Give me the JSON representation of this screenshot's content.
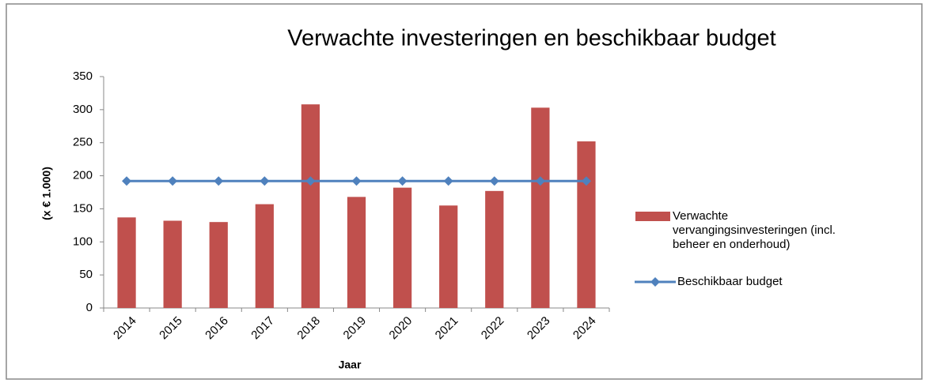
{
  "chart_data": {
    "type": "bar",
    "title": "Verwachte investeringen en beschikbaar budget",
    "x_label": "Jaar",
    "y_label": "(x € 1.000)",
    "categories": [
      "2014",
      "2015",
      "2016",
      "2017",
      "2018",
      "2019",
      "2020",
      "2021",
      "2022",
      "2023",
      "2024"
    ],
    "series": [
      {
        "name": "Verwachte vervangingsinvesteringen (incl. beheer en onderhoud)",
        "type": "bar",
        "color": "#c0504d",
        "values": [
          137,
          132,
          130,
          157,
          308,
          168,
          182,
          155,
          177,
          303,
          252
        ]
      },
      {
        "name": "Beschikbaar budget",
        "type": "line",
        "color": "#4f81bd",
        "values": [
          192,
          192,
          192,
          192,
          192,
          192,
          192,
          192,
          192,
          192,
          192
        ]
      }
    ],
    "ylim": [
      0,
      350
    ],
    "yticks": [
      0,
      50,
      100,
      150,
      200,
      250,
      300,
      350
    ],
    "grid": false,
    "legend": "right"
  }
}
